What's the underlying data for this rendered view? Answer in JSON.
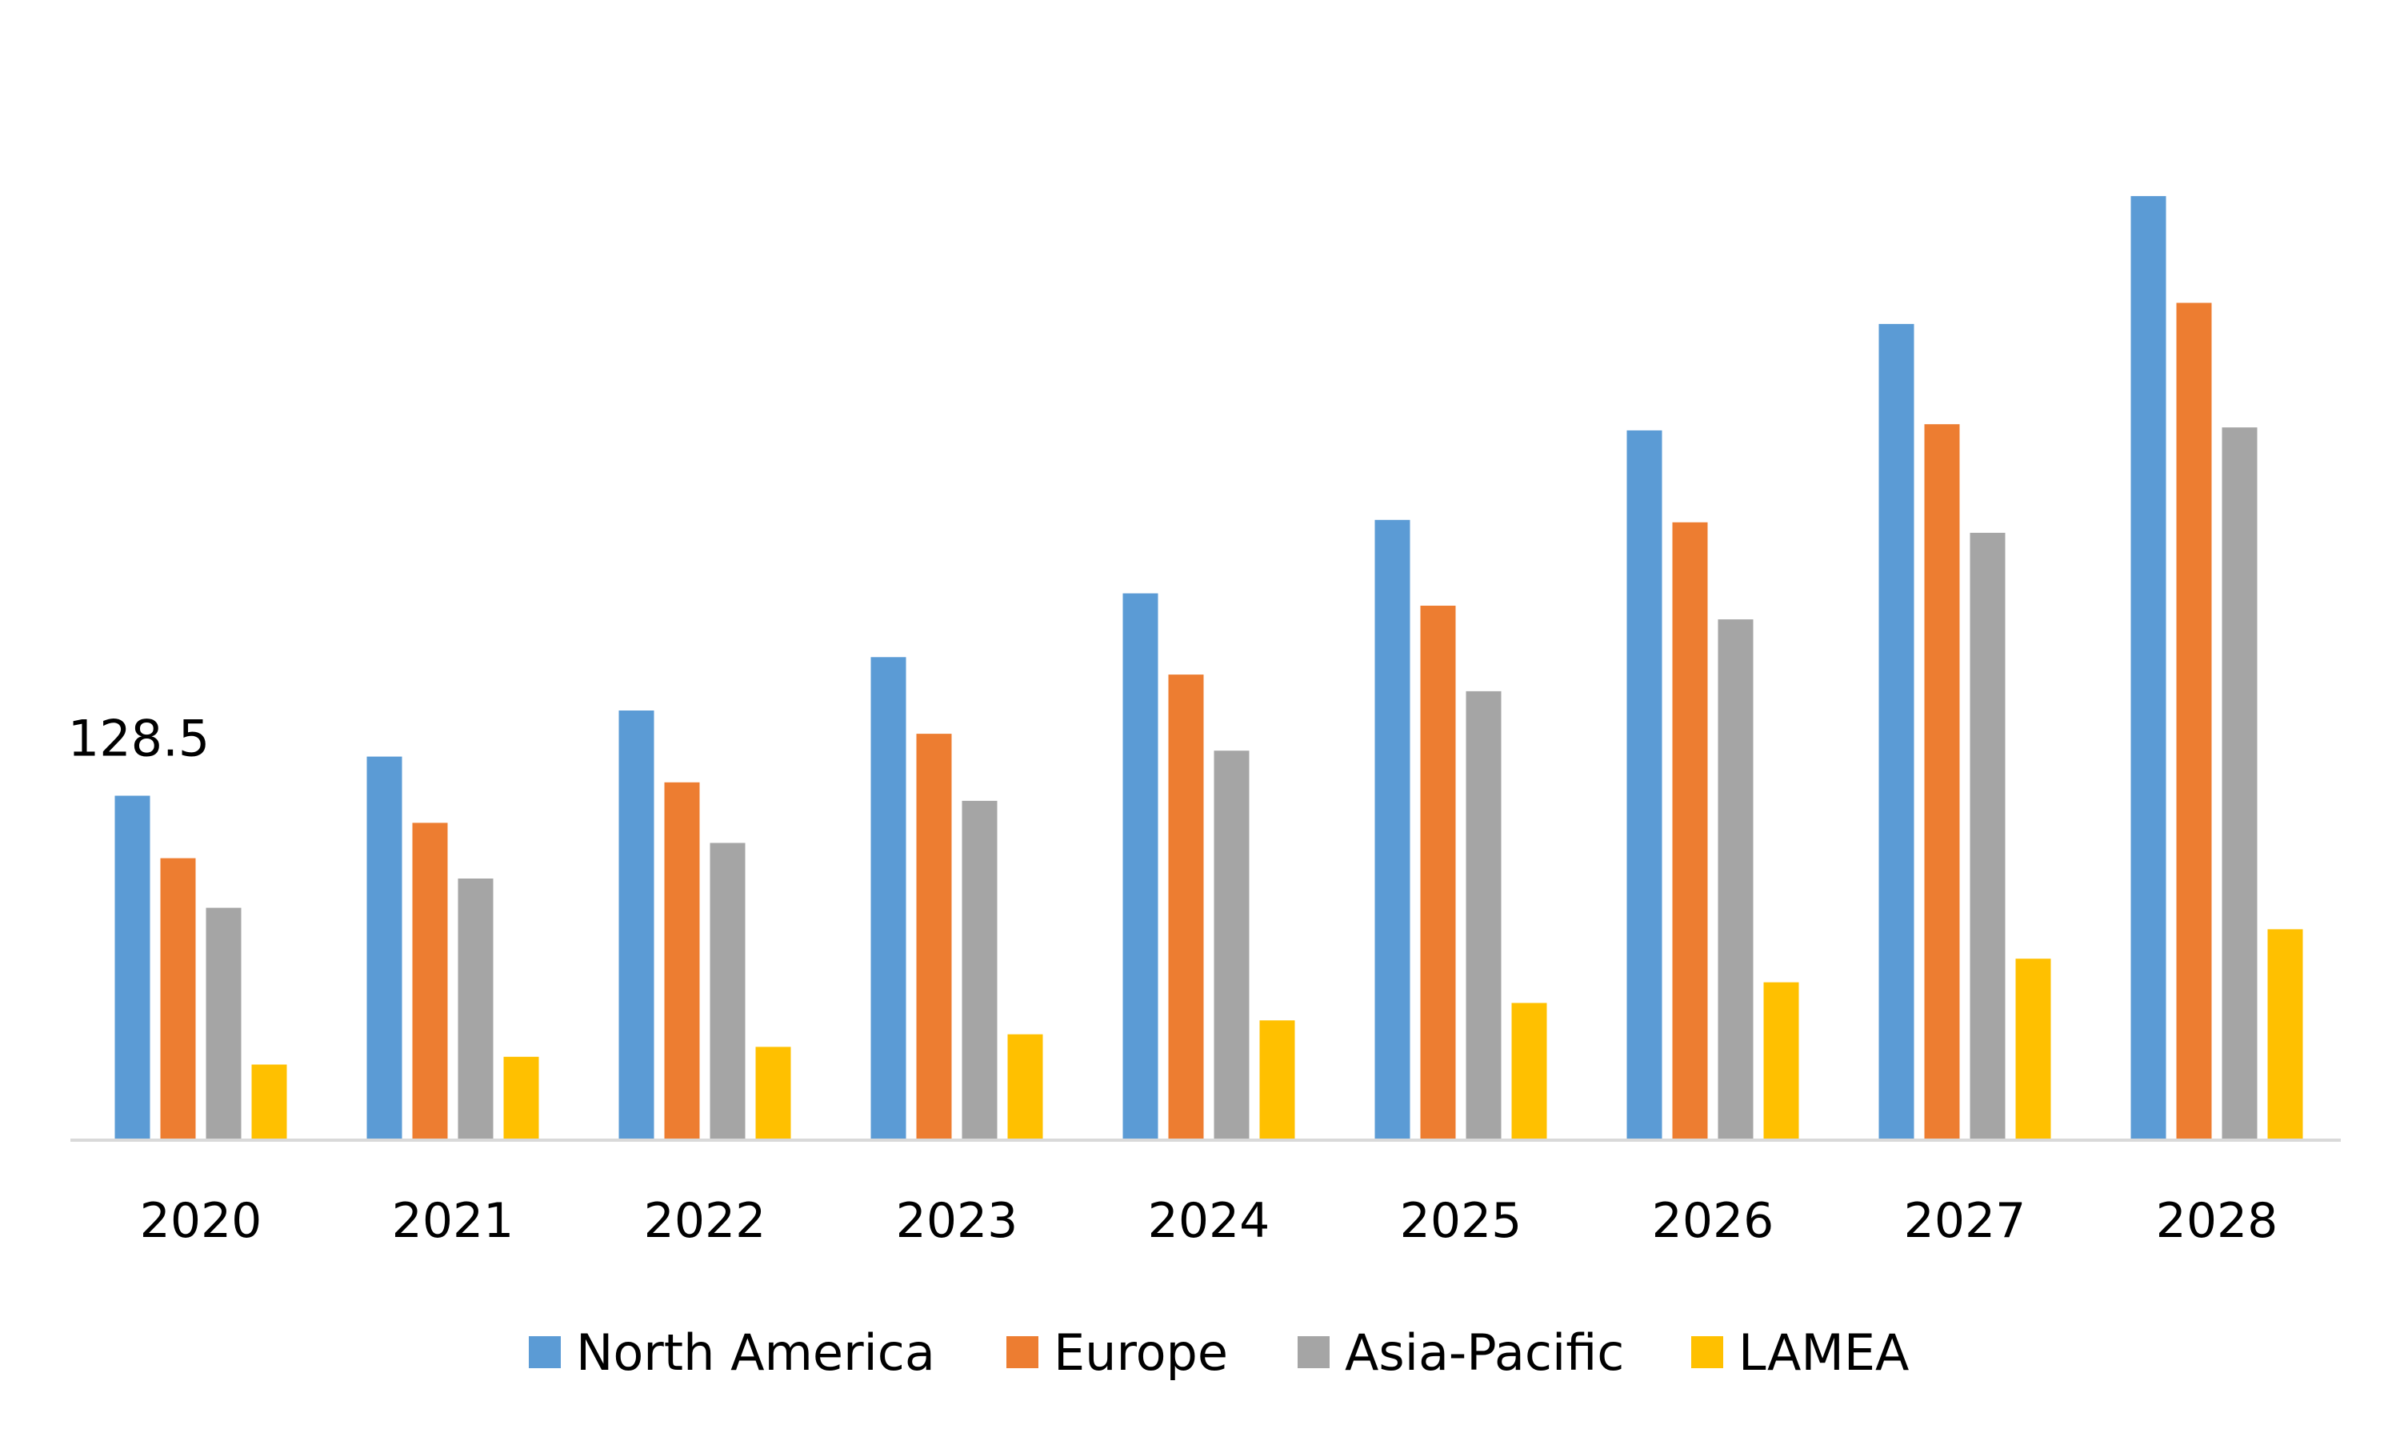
{
  "chart_data": {
    "type": "bar",
    "title": "",
    "xlabel": "",
    "ylabel": "",
    "categories": [
      "2020",
      "2021",
      "2022",
      "2023",
      "2024",
      "2025",
      "2026",
      "2027",
      "2028"
    ],
    "series": [
      {
        "name": "North America",
        "color": "#5B9BD5",
        "values": [
          128.5,
          143.1,
          160.3,
          180.2,
          204.0,
          231.4,
          264.8,
          304.5,
          352.2
        ]
      },
      {
        "name": "Europe",
        "color": "#ED7D31",
        "values": [
          105.2,
          118.4,
          133.5,
          151.6,
          173.7,
          199.4,
          230.5,
          267.1,
          312.4
        ]
      },
      {
        "name": "Asia-Pacific",
        "color": "#A5A5A5",
        "values": [
          86.7,
          97.6,
          110.9,
          126.6,
          145.3,
          167.5,
          194.3,
          226.6,
          265.9
        ]
      },
      {
        "name": "LAMEA",
        "color": "#FFC000",
        "values": [
          28.2,
          31.1,
          34.8,
          39.5,
          44.7,
          51.2,
          58.9,
          67.7,
          78.7
        ]
      }
    ],
    "data_labels": [
      {
        "series": 0,
        "category": 0,
        "text": "128.5"
      }
    ],
    "ylim": [
      0,
      400
    ],
    "grid": false,
    "legend": "bottom"
  }
}
